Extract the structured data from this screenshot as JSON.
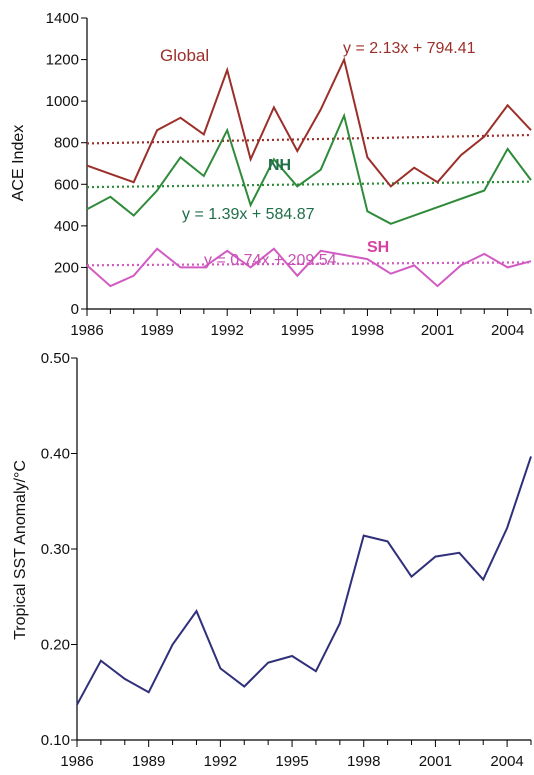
{
  "chart_data": [
    {
      "type": "line",
      "title": "",
      "xlabel": "",
      "ylabel": "ACE Index",
      "xlim": [
        1986,
        2005
      ],
      "ylim": [
        0,
        1400
      ],
      "x_ticks": [
        1986,
        1989,
        1992,
        1995,
        1998,
        2001,
        2004
      ],
      "y_ticks": [
        0,
        200,
        400,
        600,
        800,
        1000,
        1200,
        1400
      ],
      "grid": false,
      "series": [
        {
          "name": "Global",
          "color": "#9b2f2a",
          "x": [
            1986,
            1987,
            1988,
            1989,
            1990,
            1991,
            1992,
            1993,
            1994,
            1995,
            1996,
            1997,
            1998,
            1999,
            2000,
            2001,
            2002,
            2003,
            2004,
            2005
          ],
          "values": [
            690,
            650,
            610,
            860,
            920,
            840,
            1150,
            720,
            970,
            760,
            960,
            1200,
            730,
            590,
            680,
            610,
            740,
            830,
            980,
            860
          ],
          "trend": {
            "slope": 2.13,
            "intercept": 794.41,
            "label": "y = 2.13x + 794.41"
          }
        },
        {
          "name": "NH",
          "color": "#2f8b3a",
          "x": [
            1986,
            1987,
            1988,
            1989,
            1990,
            1991,
            1992,
            1993,
            1994,
            1995,
            1996,
            1997,
            1998,
            1999,
            2001,
            2003,
            2004,
            2005
          ],
          "values": [
            480,
            540,
            450,
            570,
            730,
            640,
            860,
            500,
            720,
            590,
            670,
            930,
            470,
            410,
            490,
            570,
            770,
            620
          ],
          "trend": {
            "slope": 1.39,
            "intercept": 584.87,
            "label": "y = 1.39x + 584.87"
          }
        },
        {
          "name": "SH",
          "color": "#d25bc3",
          "x": [
            1986,
            1987,
            1988,
            1989,
            1990,
            1991,
            1992,
            1993,
            1994,
            1995,
            1996,
            1998,
            1999,
            2000,
            2001,
            2002,
            2003,
            2004,
            2005
          ],
          "values": [
            210,
            110,
            160,
            290,
            200,
            200,
            280,
            200,
            290,
            160,
            280,
            240,
            170,
            210,
            110,
            210,
            265,
            200,
            230
          ],
          "trend": {
            "slope": 0.74,
            "intercept": 209.54,
            "label": "y = 0.74x + 209.54"
          }
        }
      ]
    },
    {
      "type": "line",
      "title": "",
      "xlabel": "",
      "ylabel": "Tropical SST Anomaly/°C",
      "xlim": [
        1986,
        2005
      ],
      "ylim": [
        0.1,
        0.5
      ],
      "x_ticks": [
        1986,
        1989,
        1992,
        1995,
        1998,
        2001,
        2004
      ],
      "y_ticks": [
        "0.10",
        "0.20",
        "0.30",
        "0.40",
        "0.50"
      ],
      "grid": false,
      "series": [
        {
          "color": "#2f2f7a",
          "x": [
            1986,
            1987,
            1988,
            1989,
            1990,
            1991,
            1992,
            1993,
            1994,
            1995,
            1996,
            1997,
            1998,
            1999,
            2000,
            2001,
            2002,
            2003,
            2004,
            2005
          ],
          "values": [
            0.137,
            0.183,
            0.164,
            0.15,
            0.2,
            0.235,
            0.175,
            0.156,
            0.181,
            0.188,
            0.172,
            0.222,
            0.314,
            0.308,
            0.271,
            0.292,
            0.296,
            0.268,
            0.322,
            0.397
          ]
        }
      ]
    }
  ]
}
